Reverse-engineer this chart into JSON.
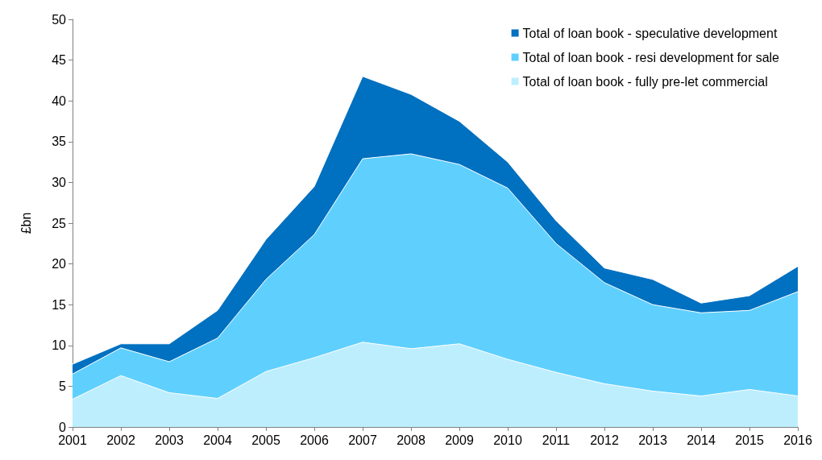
{
  "chart_data": {
    "type": "area",
    "stacked": true,
    "ylabel": "£bn",
    "categories": [
      "2001",
      "2002",
      "2003",
      "2004",
      "2005",
      "2006",
      "2007",
      "2008",
      "2009",
      "2010",
      "2011",
      "2012",
      "2013",
      "2014",
      "2015",
      "2016"
    ],
    "ylim": [
      0,
      50
    ],
    "yticks": [
      0,
      5,
      10,
      15,
      20,
      25,
      30,
      35,
      40,
      45,
      50
    ],
    "grid": false,
    "legend": "top right",
    "series": [
      {
        "name": "Total of loan book - fully pre-let commercial",
        "color": "#bdeefe",
        "values": [
          3.4,
          6.3,
          4.2,
          3.5,
          6.8,
          8.5,
          10.4,
          9.6,
          10.2,
          8.3,
          6.7,
          5.3,
          4.4,
          3.8,
          4.6,
          3.8
        ]
      },
      {
        "name": "Total of loan book - resi development for sale",
        "color": "#5fd0fe",
        "values": [
          3.1,
          3.4,
          3.8,
          7.4,
          11.3,
          15.1,
          22.5,
          23.9,
          22.0,
          21.0,
          15.8,
          12.4,
          10.6,
          10.2,
          9.7,
          12.8
        ]
      },
      {
        "name": "Total of loan book - speculative development",
        "color": "#0070c0",
        "values": [
          1.2,
          0.5,
          2.2,
          3.4,
          4.9,
          5.9,
          10.1,
          7.3,
          5.3,
          3.2,
          2.8,
          1.8,
          3.1,
          1.2,
          1.8,
          3.1
        ]
      }
    ]
  }
}
